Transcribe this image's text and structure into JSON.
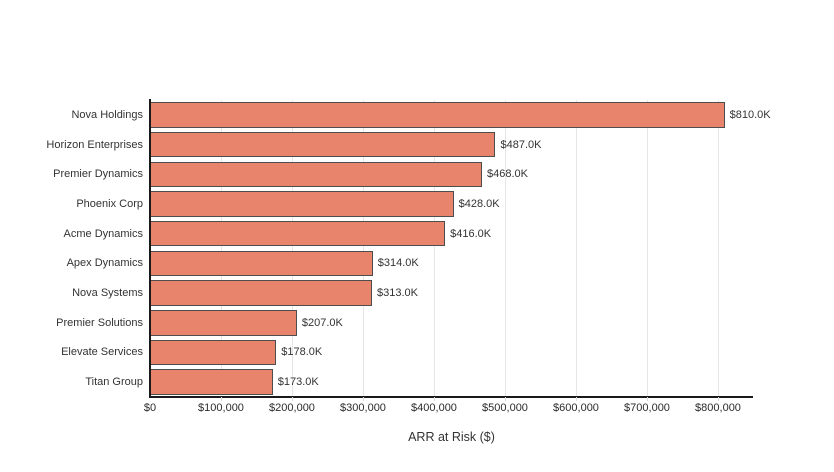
{
  "chart_data": {
    "type": "bar",
    "orientation": "horizontal",
    "title": "",
    "xlabel": "ARR at Risk ($)",
    "ylabel": "",
    "categories": [
      "Nova Holdings",
      "Horizon Enterprises",
      "Premier Dynamics",
      "Phoenix Corp",
      "Acme Dynamics",
      "Apex Dynamics",
      "Nova Systems",
      "Premier Solutions",
      "Elevate Services",
      "Titan Group"
    ],
    "values": [
      810000,
      487000,
      468000,
      428000,
      416000,
      314000,
      313000,
      207000,
      178000,
      173000
    ],
    "value_labels": [
      "$810.0K",
      "$487.0K",
      "$468.0K",
      "$428.0K",
      "$416.0K",
      "$314.0K",
      "$313.0K",
      "$207.0K",
      "$178.0K",
      "$173.0K"
    ],
    "xlim": [
      0,
      850000
    ],
    "xticks": [
      {
        "value": 0,
        "label": "$0"
      },
      {
        "value": 100000,
        "label": "$100,000"
      },
      {
        "value": 200000,
        "label": "$200,000"
      },
      {
        "value": 300000,
        "label": "$300,000"
      },
      {
        "value": 400000,
        "label": "$400,000"
      },
      {
        "value": 500000,
        "label": "$500,000"
      },
      {
        "value": 600000,
        "label": "$600,000"
      },
      {
        "value": 700000,
        "label": "$700,000"
      },
      {
        "value": 800000,
        "label": "$800,000"
      }
    ],
    "grid": true,
    "legend": false,
    "colors": {
      "bar_fill": "#e8846b",
      "bar_border": "#4d4d4d",
      "gridline": "#e6e6e6",
      "axis_line": "#1a1a1a",
      "text": "#333333",
      "background": "#ffffff"
    }
  }
}
